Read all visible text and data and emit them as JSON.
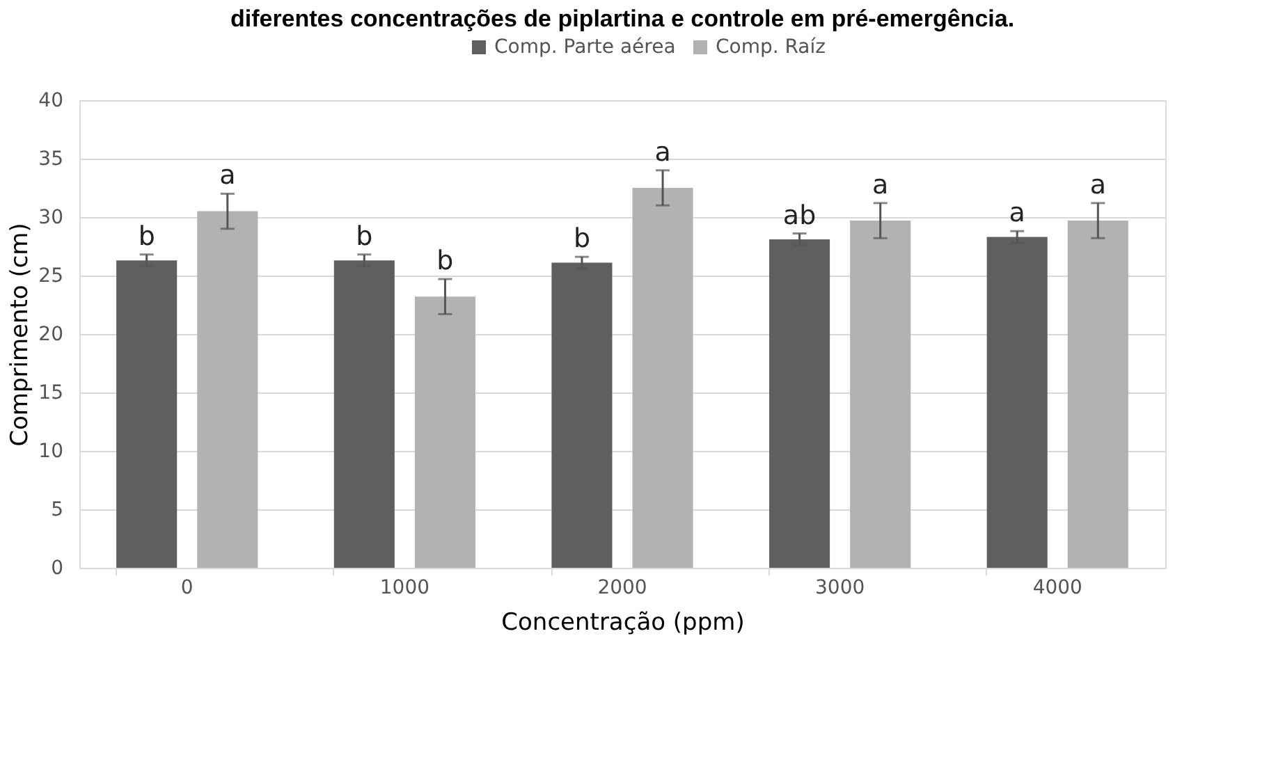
{
  "chart_data": {
    "type": "bar",
    "title": "diferentes concentrações de piplartina e controle em pré-emergência.",
    "xlabel": "Concentração (ppm)",
    "ylabel": "Comprimento (cm)",
    "categories": [
      "0",
      "1000",
      "2000",
      "3000",
      "4000"
    ],
    "series": [
      {
        "name": "Comp. Parte aérea",
        "color": "#5f5f5f",
        "values": [
          26.3,
          26.3,
          26.1,
          28.1,
          28.3
        ],
        "errors": [
          0.5,
          0.5,
          0.5,
          0.5,
          0.5
        ],
        "value_labels": [
          "b",
          "b",
          "b",
          "ab",
          "a"
        ]
      },
      {
        "name": "Comp. Raíz",
        "color": "#b2b2b2",
        "values": [
          30.5,
          23.2,
          32.5,
          29.7,
          29.7
        ],
        "errors": [
          1.5,
          1.5,
          1.5,
          1.5,
          1.5
        ],
        "value_labels": [
          "a",
          "b",
          "a",
          "a",
          "a"
        ]
      }
    ],
    "ylim": [
      0,
      40
    ],
    "yticks": [
      0,
      5,
      10,
      15,
      20,
      25,
      30,
      35,
      40
    ],
    "grid": "y",
    "legend": "top"
  }
}
